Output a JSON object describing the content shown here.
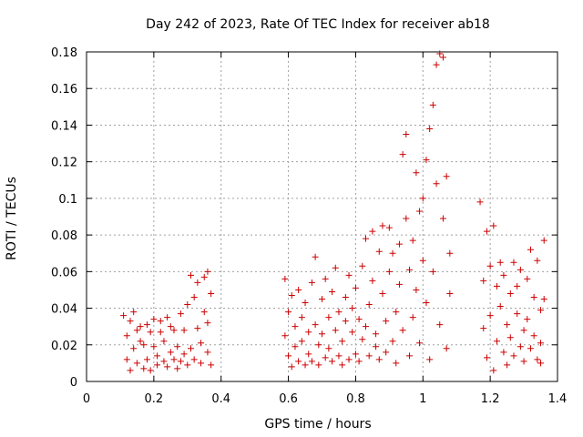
{
  "chart_data": {
    "type": "scatter",
    "title": "Day 242 of 2023, Rate Of TEC Index for receiver ab18",
    "xlabel": "GPS time / hours",
    "ylabel": "ROTI / TECUs",
    "xlim": [
      0,
      1.4
    ],
    "ylim": [
      0,
      0.18
    ],
    "xticks": [
      "0",
      "0.2",
      "0.4",
      "0.6",
      "0.8",
      "1",
      "1.2",
      "1.4"
    ],
    "yticks": [
      "0",
      "0.02",
      "0.04",
      "0.06",
      "0.08",
      "0.1",
      "0.12",
      "0.14",
      "0.16",
      "0.18"
    ],
    "grid": true,
    "marker": "plus",
    "color": "#cc0000",
    "series": [
      {
        "points": [
          [
            0.11,
            0.036
          ],
          [
            0.12,
            0.025
          ],
          [
            0.12,
            0.012
          ],
          [
            0.13,
            0.033
          ],
          [
            0.13,
            0.006
          ],
          [
            0.14,
            0.038
          ],
          [
            0.14,
            0.018
          ],
          [
            0.15,
            0.028
          ],
          [
            0.15,
            0.01
          ],
          [
            0.16,
            0.03
          ],
          [
            0.16,
            0.022
          ],
          [
            0.17,
            0.007
          ],
          [
            0.17,
            0.02
          ],
          [
            0.18,
            0.031
          ],
          [
            0.18,
            0.012
          ],
          [
            0.19,
            0.027
          ],
          [
            0.19,
            0.006
          ],
          [
            0.2,
            0.019
          ],
          [
            0.2,
            0.034
          ],
          [
            0.21,
            0.014
          ],
          [
            0.21,
            0.009
          ],
          [
            0.22,
            0.027
          ],
          [
            0.22,
            0.033
          ],
          [
            0.23,
            0.011
          ],
          [
            0.23,
            0.022
          ],
          [
            0.24,
            0.035
          ],
          [
            0.24,
            0.008
          ],
          [
            0.25,
            0.016
          ],
          [
            0.25,
            0.03
          ],
          [
            0.26,
            0.012
          ],
          [
            0.26,
            0.028
          ],
          [
            0.27,
            0.007
          ],
          [
            0.27,
            0.019
          ],
          [
            0.28,
            0.037
          ],
          [
            0.28,
            0.011
          ],
          [
            0.29,
            0.015
          ],
          [
            0.29,
            0.028
          ],
          [
            0.3,
            0.042
          ],
          [
            0.3,
            0.009
          ],
          [
            0.31,
            0.058
          ],
          [
            0.31,
            0.018
          ],
          [
            0.32,
            0.046
          ],
          [
            0.32,
            0.012
          ],
          [
            0.33,
            0.029
          ],
          [
            0.33,
            0.054
          ],
          [
            0.34,
            0.021
          ],
          [
            0.34,
            0.01
          ],
          [
            0.35,
            0.057
          ],
          [
            0.35,
            0.038
          ],
          [
            0.36,
            0.06
          ],
          [
            0.36,
            0.016
          ],
          [
            0.37,
            0.048
          ],
          [
            0.37,
            0.009
          ],
          [
            0.36,
            0.032
          ]
        ]
      },
      {
        "points": [
          [
            0.59,
            0.056
          ],
          [
            0.59,
            0.025
          ],
          [
            0.6,
            0.014
          ],
          [
            0.6,
            0.038
          ],
          [
            0.61,
            0.008
          ],
          [
            0.61,
            0.047
          ],
          [
            0.62,
            0.03
          ],
          [
            0.62,
            0.019
          ],
          [
            0.63,
            0.011
          ],
          [
            0.63,
            0.05
          ],
          [
            0.64,
            0.035
          ],
          [
            0.64,
            0.022
          ],
          [
            0.65,
            0.009
          ],
          [
            0.65,
            0.043
          ],
          [
            0.66,
            0.027
          ],
          [
            0.66,
            0.015
          ],
          [
            0.67,
            0.054
          ],
          [
            0.67,
            0.011
          ],
          [
            0.68,
            0.031
          ],
          [
            0.68,
            0.068
          ],
          [
            0.69,
            0.02
          ],
          [
            0.69,
            0.009
          ],
          [
            0.7,
            0.045
          ],
          [
            0.7,
            0.026
          ],
          [
            0.71,
            0.013
          ],
          [
            0.71,
            0.056
          ],
          [
            0.72,
            0.035
          ],
          [
            0.72,
            0.018
          ],
          [
            0.73,
            0.011
          ],
          [
            0.73,
            0.049
          ],
          [
            0.74,
            0.028
          ],
          [
            0.74,
            0.062
          ],
          [
            0.75,
            0.014
          ],
          [
            0.75,
            0.038
          ],
          [
            0.76,
            0.009
          ],
          [
            0.76,
            0.022
          ],
          [
            0.77,
            0.046
          ],
          [
            0.77,
            0.033
          ],
          [
            0.78,
            0.012
          ],
          [
            0.78,
            0.058
          ],
          [
            0.79,
            0.027
          ],
          [
            0.79,
            0.04
          ],
          [
            0.8,
            0.015
          ],
          [
            0.8,
            0.051
          ],
          [
            0.81,
            0.034
          ],
          [
            0.81,
            0.011
          ],
          [
            0.82,
            0.063
          ],
          [
            0.82,
            0.023
          ],
          [
            0.83,
            0.078
          ],
          [
            0.83,
            0.03
          ],
          [
            0.84,
            0.014
          ],
          [
            0.84,
            0.042
          ],
          [
            0.85,
            0.082
          ],
          [
            0.85,
            0.055
          ],
          [
            0.86,
            0.019
          ],
          [
            0.86,
            0.026
          ],
          [
            0.87,
            0.071
          ],
          [
            0.87,
            0.012
          ],
          [
            0.88,
            0.048
          ],
          [
            0.88,
            0.085
          ],
          [
            0.89,
            0.033
          ],
          [
            0.89,
            0.016
          ],
          [
            0.9,
            0.06
          ],
          [
            0.9,
            0.084
          ],
          [
            0.91,
            0.022
          ],
          [
            0.91,
            0.07
          ],
          [
            0.92,
            0.038
          ],
          [
            0.92,
            0.01
          ],
          [
            0.93,
            0.075
          ],
          [
            0.93,
            0.053
          ],
          [
            0.94,
            0.124
          ],
          [
            0.94,
            0.028
          ],
          [
            0.95,
            0.135
          ],
          [
            0.95,
            0.089
          ],
          [
            0.96,
            0.014
          ],
          [
            0.96,
            0.061
          ],
          [
            0.97,
            0.077
          ],
          [
            0.97,
            0.035
          ],
          [
            0.98,
            0.114
          ],
          [
            0.98,
            0.05
          ],
          [
            0.99,
            0.093
          ],
          [
            0.99,
            0.021
          ],
          [
            1.0,
            0.1
          ],
          [
            1.0,
            0.066
          ],
          [
            1.01,
            0.121
          ],
          [
            1.01,
            0.043
          ],
          [
            1.02,
            0.138
          ],
          [
            1.02,
            0.012
          ],
          [
            1.03,
            0.151
          ],
          [
            1.03,
            0.06
          ],
          [
            1.04,
            0.173
          ],
          [
            1.04,
            0.108
          ],
          [
            1.05,
            0.179
          ],
          [
            1.05,
            0.031
          ],
          [
            1.06,
            0.177
          ],
          [
            1.06,
            0.089
          ],
          [
            1.07,
            0.112
          ],
          [
            1.07,
            0.018
          ],
          [
            1.08,
            0.07
          ],
          [
            1.08,
            0.048
          ]
        ]
      },
      {
        "points": [
          [
            1.17,
            0.098
          ],
          [
            1.18,
            0.055
          ],
          [
            1.18,
            0.029
          ],
          [
            1.19,
            0.082
          ],
          [
            1.19,
            0.013
          ],
          [
            1.2,
            0.063
          ],
          [
            1.2,
            0.036
          ],
          [
            1.21,
            0.085
          ],
          [
            1.21,
            0.006
          ],
          [
            1.22,
            0.052
          ],
          [
            1.22,
            0.022
          ],
          [
            1.23,
            0.065
          ],
          [
            1.23,
            0.041
          ],
          [
            1.24,
            0.016
          ],
          [
            1.24,
            0.058
          ],
          [
            1.25,
            0.031
          ],
          [
            1.25,
            0.009
          ],
          [
            1.26,
            0.048
          ],
          [
            1.26,
            0.024
          ],
          [
            1.27,
            0.065
          ],
          [
            1.27,
            0.014
          ],
          [
            1.28,
            0.037
          ],
          [
            1.28,
            0.052
          ],
          [
            1.29,
            0.019
          ],
          [
            1.29,
            0.061
          ],
          [
            1.3,
            0.028
          ],
          [
            1.3,
            0.011
          ],
          [
            1.31,
            0.056
          ],
          [
            1.31,
            0.034
          ],
          [
            1.32,
            0.072
          ],
          [
            1.32,
            0.018
          ],
          [
            1.33,
            0.046
          ],
          [
            1.33,
            0.025
          ],
          [
            1.34,
            0.066
          ],
          [
            1.34,
            0.012
          ],
          [
            1.35,
            0.039
          ],
          [
            1.35,
            0.021
          ],
          [
            1.36,
            0.077
          ],
          [
            1.36,
            0.045
          ],
          [
            1.35,
            0.01
          ]
        ]
      }
    ]
  }
}
